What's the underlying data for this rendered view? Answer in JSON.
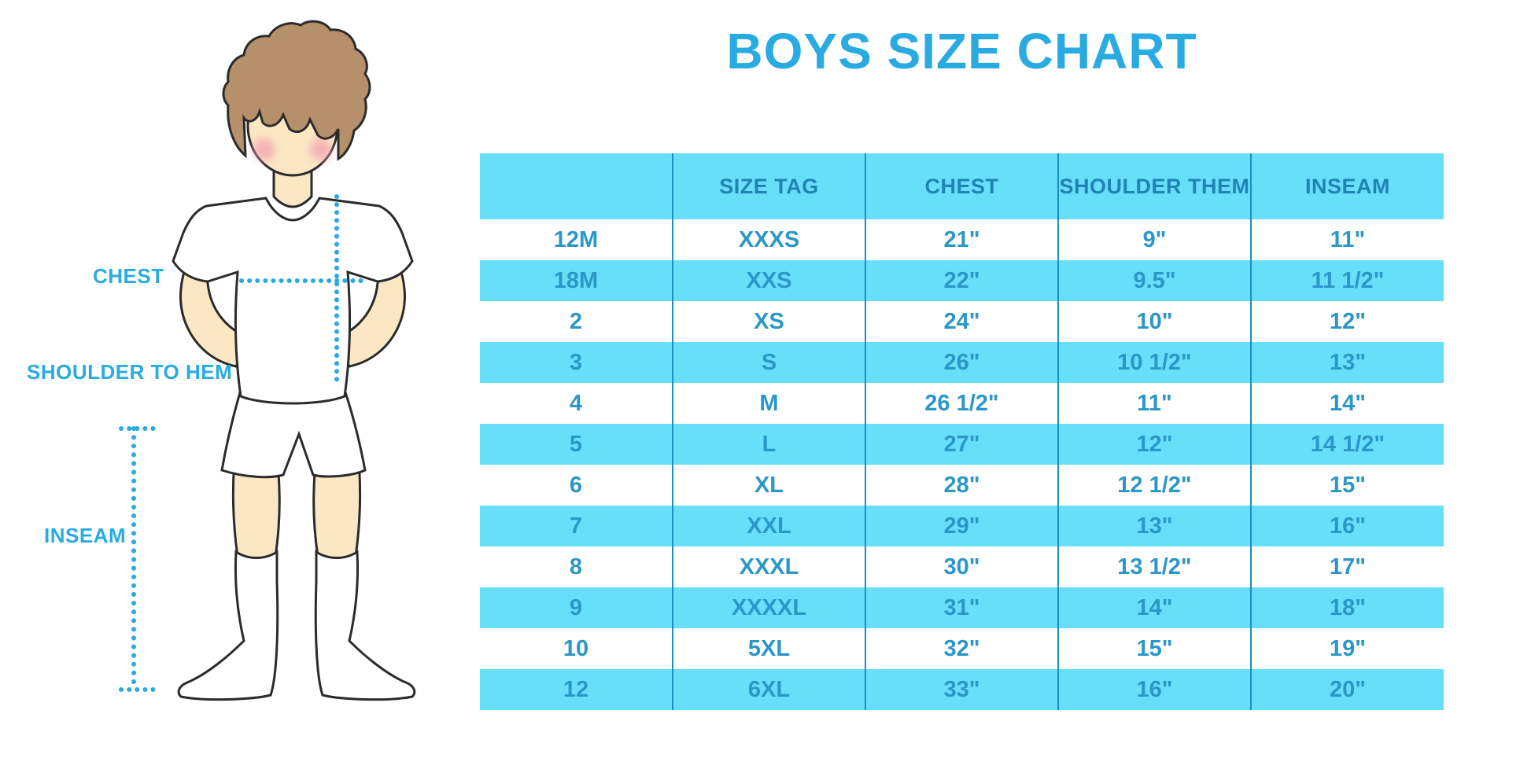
{
  "title": "BOYS SIZE CHART",
  "figure": {
    "chest_label": "CHEST",
    "shoulder_label": "SHOULDER TO HEM",
    "inseam_label": "INSEAM"
  },
  "colors": {
    "accent_blue": "#29ABE2",
    "table_fill": "#67DFF8",
    "table_line": "#1A8FC0",
    "header_text": "#1F84B4",
    "cell_text": "#2B97C8",
    "skin": "#FBE7C4",
    "hair": "#B6906B",
    "cheek": "#F2A3B0",
    "outline": "#2B2B2B"
  },
  "chart_data": {
    "type": "table",
    "title": "BOYS SIZE CHART",
    "columns": [
      "",
      "SIZE TAG",
      "CHEST",
      "SHOULDER THEM",
      "INSEAM"
    ],
    "rows": [
      [
        "12M",
        "XXXS",
        "21\"",
        "9\"",
        "11\""
      ],
      [
        "18M",
        "XXS",
        "22\"",
        "9.5\"",
        "11 1/2\""
      ],
      [
        "2",
        "XS",
        "24\"",
        "10\"",
        "12\""
      ],
      [
        "3",
        "S",
        "26\"",
        "10 1/2\"",
        "13\""
      ],
      [
        "4",
        "M",
        "26 1/2\"",
        "11\"",
        "14\""
      ],
      [
        "5",
        "L",
        "27\"",
        "12\"",
        "14 1/2\""
      ],
      [
        "6",
        "XL",
        "28\"",
        "12 1/2\"",
        "15\""
      ],
      [
        "7",
        "XXL",
        "29\"",
        "13\"",
        "16\""
      ],
      [
        "8",
        "XXXL",
        "30\"",
        "13 1/2\"",
        "17\""
      ],
      [
        "9",
        "XXXXL",
        "31\"",
        "14\"",
        "18\""
      ],
      [
        "10",
        "5XL",
        "32\"",
        "15\"",
        "19\""
      ],
      [
        "12",
        "6XL",
        "33\"",
        "16\"",
        "20\""
      ]
    ]
  }
}
